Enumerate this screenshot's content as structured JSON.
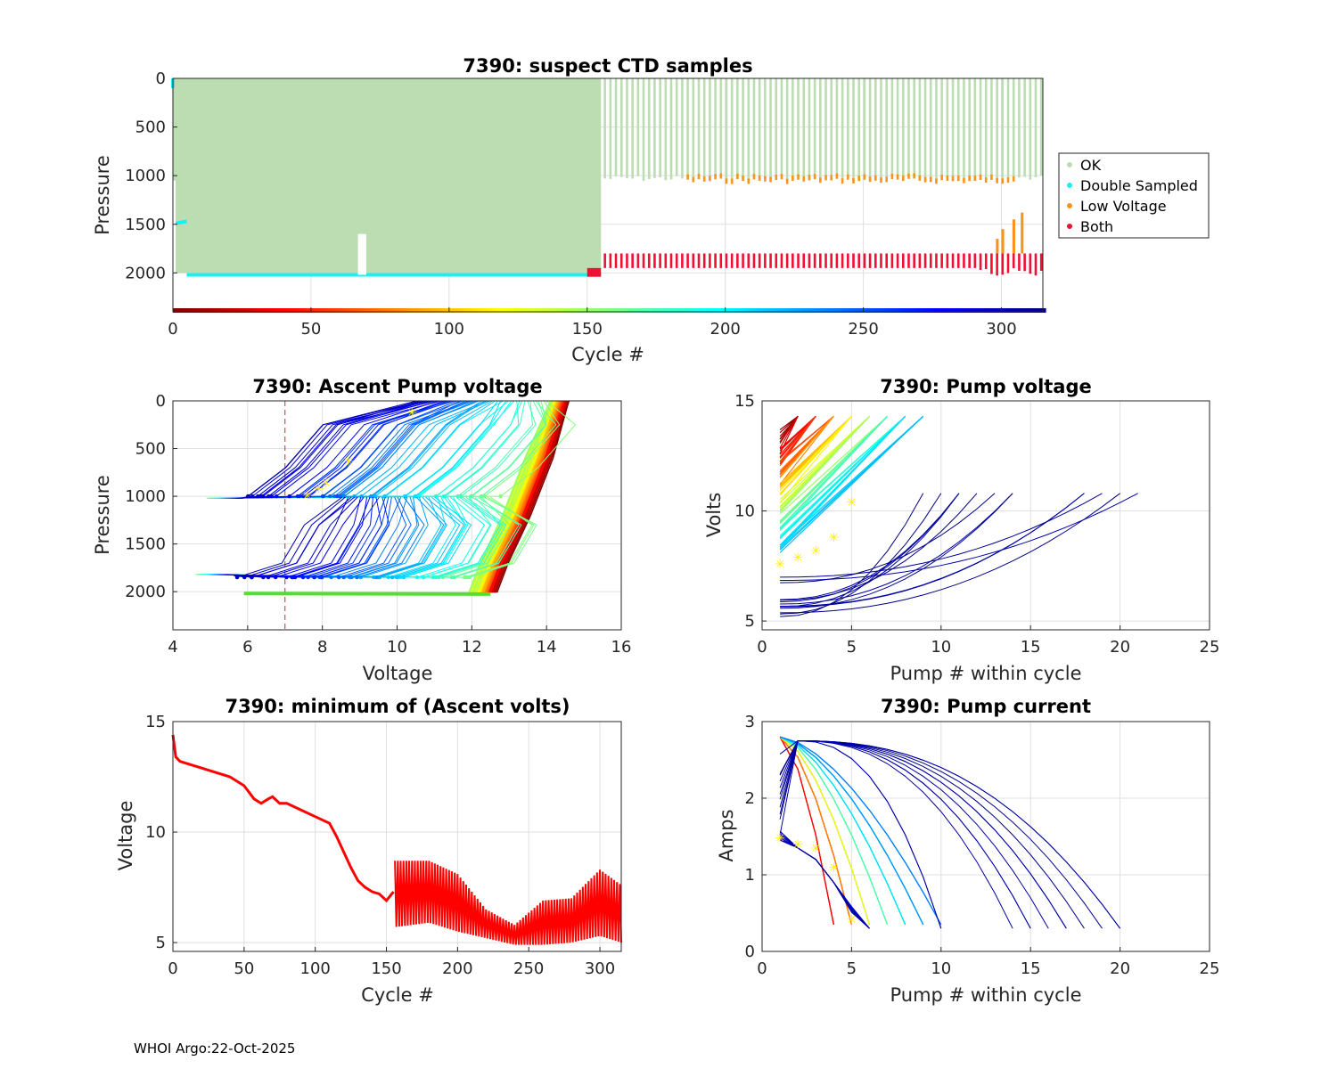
{
  "footer": "WHOI Argo:22-Oct-2025",
  "chart_data": [
    {
      "id": "suspect",
      "type": "scatter",
      "title": "7390: suspect CTD samples",
      "xlabel": "Cycle #",
      "ylabel": "Pressure",
      "xlim": [
        0,
        315
      ],
      "ylim": [
        2400,
        0
      ],
      "xticks": [
        "0",
        "50",
        "100",
        "150",
        "200",
        "250",
        "300"
      ],
      "yticks": [
        "0",
        "500",
        "1000",
        "1500",
        "2000"
      ],
      "legend": {
        "position": "outside-right",
        "entries": [
          {
            "name": "OK",
            "color": "#bcdcb2"
          },
          {
            "name": "Double Sampled",
            "color": "#19f0f0"
          },
          {
            "name": "Low Voltage",
            "color": "#f7941d"
          },
          {
            "name": "Both",
            "color": "#ee1133"
          }
        ]
      },
      "phases": [
        {
          "cycles": [
            1,
            155
          ],
          "ok_top": 0,
          "ok_bottom": 2000,
          "double_sampled_at": 2020
        },
        {
          "cycles": [
            156,
            315
          ],
          "ok_top": 0,
          "ok_bottom": 1000,
          "both_range": [
            1800,
            1950
          ],
          "low_voltage_at": 1000
        }
      ]
    },
    {
      "id": "ascent",
      "type": "line",
      "title": "7390: Ascent Pump voltage",
      "xlabel": "Voltage",
      "ylabel": "Pressure",
      "xlim": [
        4,
        16
      ],
      "ylim": [
        2400,
        0
      ],
      "xticks": [
        "4",
        "6",
        "8",
        "10",
        "12",
        "14",
        "16"
      ],
      "yticks": [
        "0",
        "500",
        "1000",
        "1500",
        "2000"
      ],
      "threshold_voltage": 7
    },
    {
      "id": "pumpv",
      "type": "line",
      "title": "7390: Pump voltage",
      "xlabel": "Pump # within cycle",
      "ylabel": "Volts",
      "xlim": [
        0,
        25
      ],
      "ylim": [
        4.6,
        15
      ],
      "xticks": [
        "0",
        "5",
        "10",
        "15",
        "20",
        "25"
      ],
      "yticks": [
        "5",
        "10",
        "15"
      ]
    },
    {
      "id": "minv",
      "type": "line",
      "title": "7390: minimum of (Ascent volts)",
      "xlabel": "Cycle #",
      "ylabel": "Voltage",
      "xlim": [
        0,
        315
      ],
      "ylim": [
        4.6,
        15
      ],
      "xticks": [
        "0",
        "50",
        "100",
        "150",
        "200",
        "250",
        "300"
      ],
      "yticks": [
        "5",
        "10",
        "15"
      ],
      "x": [
        0,
        2,
        5,
        10,
        20,
        30,
        40,
        50,
        57,
        62,
        67,
        70,
        75,
        80,
        90,
        100,
        110,
        115,
        120,
        125,
        130,
        135,
        140,
        145,
        150,
        155
      ],
      "y": [
        14.4,
        13.4,
        13.2,
        13.1,
        12.9,
        12.7,
        12.5,
        12.1,
        11.5,
        11.3,
        11.5,
        11.6,
        11.3,
        11.3,
        11.0,
        10.7,
        10.4,
        9.8,
        9.1,
        8.4,
        7.8,
        7.5,
        7.3,
        7.2,
        6.9,
        7.3
      ],
      "oscillation": {
        "cycles": [
          156,
          315
        ],
        "upper": [
          [
            156,
            8.7
          ],
          [
            180,
            8.7
          ],
          [
            200,
            8.1
          ],
          [
            220,
            6.5
          ],
          [
            240,
            5.8
          ],
          [
            260,
            6.9
          ],
          [
            280,
            7.0
          ],
          [
            300,
            8.3
          ],
          [
            315,
            7.6
          ]
        ],
        "lower": [
          [
            156,
            5.7
          ],
          [
            180,
            5.9
          ],
          [
            200,
            5.5
          ],
          [
            220,
            5.2
          ],
          [
            240,
            4.9
          ],
          [
            260,
            4.9
          ],
          [
            280,
            5.0
          ],
          [
            300,
            5.3
          ],
          [
            315,
            5.0
          ]
        ]
      }
    },
    {
      "id": "pumpi",
      "type": "line",
      "title": "7390: Pump current",
      "xlabel": "Pump # within cycle",
      "ylabel": "Amps",
      "xlim": [
        0,
        25
      ],
      "ylim": [
        0,
        3
      ],
      "xticks": [
        "0",
        "5",
        "10",
        "15",
        "20",
        "25"
      ],
      "yticks": [
        "0",
        "1",
        "2",
        "3"
      ]
    }
  ]
}
